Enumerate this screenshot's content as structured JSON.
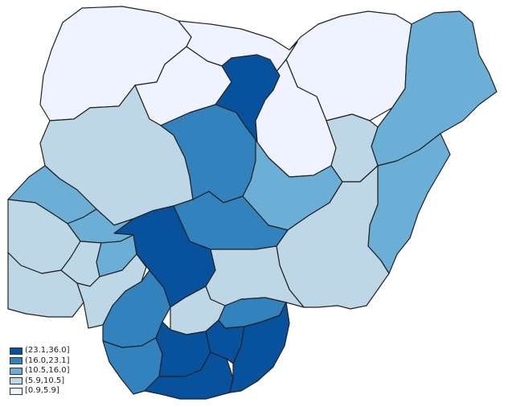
{
  "legend": {
    "items": [
      {
        "label": "(23.1,36.0]",
        "color": "#08519c"
      },
      {
        "label": "(16.0,23.1]",
        "color": "#3182bd"
      },
      {
        "label": "(10.5,16.0]",
        "color": "#6baed6"
      },
      {
        "label": "(5.9,10.5]",
        "color": "#bdd7e7"
      },
      {
        "label": "[0.9,5.9]",
        "color": "#eff3ff"
      }
    ]
  }
}
